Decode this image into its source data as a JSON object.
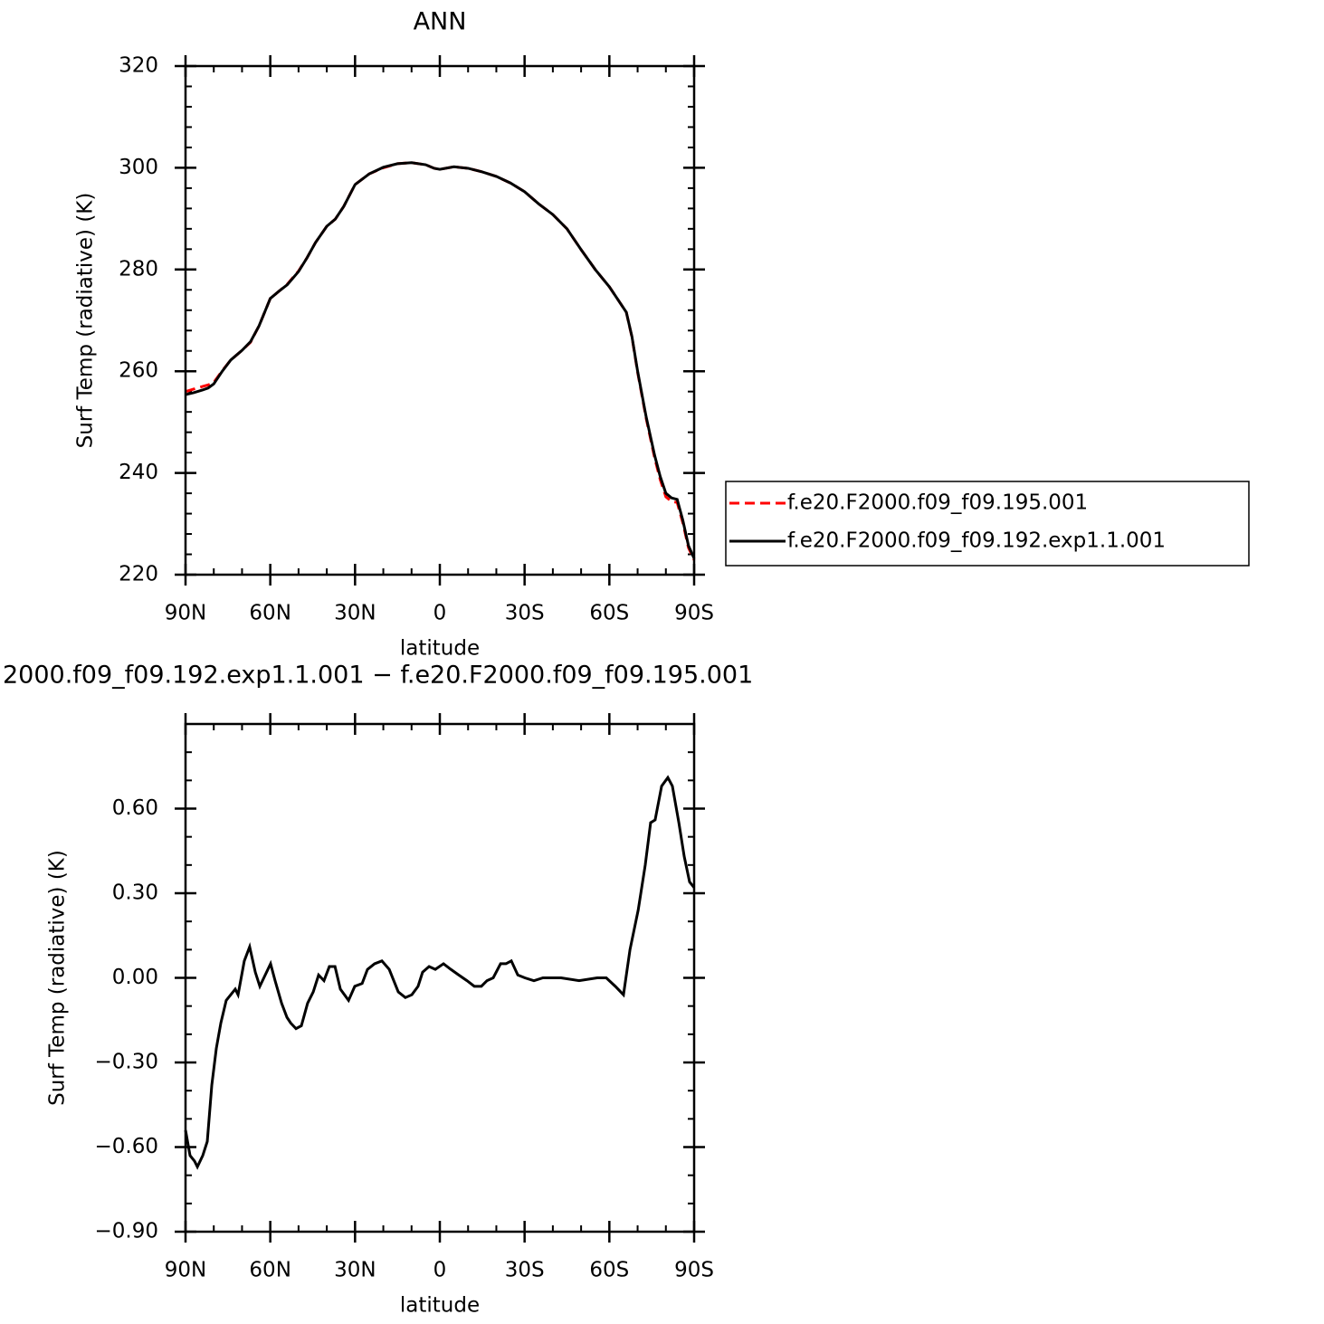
{
  "chart_data": [
    {
      "type": "line",
      "title": "ANN",
      "xlabel": "latitude",
      "ylabel": "Surf Temp (radiative) (K)",
      "x": [
        90,
        87,
        84,
        82,
        80,
        77,
        74,
        70,
        67,
        64,
        60,
        57,
        54,
        50,
        47,
        44,
        40,
        37,
        34,
        30,
        25,
        20,
        15,
        10,
        5,
        2,
        0,
        -5,
        -10,
        -15,
        -20,
        -25,
        -30,
        -35,
        -40,
        -45,
        -50,
        -55,
        -60,
        -63,
        -66,
        -68,
        -70,
        -73,
        -76,
        -78,
        -80,
        -82,
        -84,
        -86,
        -88,
        -90
      ],
      "series": [
        {
          "name": "f.e20.F2000.f09_f09.195.001",
          "color": "#ff0000",
          "dash": true,
          "values": [
            256.0,
            256.5,
            257.0,
            257.3,
            257.8,
            260.1,
            262.2,
            264.1,
            265.7,
            268.9,
            274.3,
            275.7,
            277.1,
            279.7,
            282.3,
            285.3,
            288.5,
            289.9,
            292.4,
            296.7,
            298.8,
            300.0,
            300.8,
            301.0,
            300.6,
            299.9,
            299.7,
            300.2,
            299.9,
            299.2,
            298.3,
            297.0,
            295.3,
            292.9,
            290.8,
            288.0,
            283.9,
            280.0,
            276.6,
            274.1,
            271.6,
            266.7,
            259.8,
            250.8,
            243.0,
            238.7,
            235.3,
            234.4,
            234.2,
            230.2,
            225.3,
            222.9
          ]
        },
        {
          "name": "f.e20.F2000.f09_f09.192.exp1.1.001",
          "color": "#000000",
          "dash": false,
          "values": [
            255.4,
            255.8,
            256.3,
            256.7,
            257.5,
            260.0,
            262.2,
            264.1,
            265.8,
            268.9,
            274.3,
            275.7,
            277.0,
            279.6,
            282.3,
            285.3,
            288.5,
            289.9,
            292.4,
            296.7,
            298.8,
            300.1,
            300.8,
            301.0,
            300.6,
            299.9,
            299.7,
            300.2,
            299.9,
            299.2,
            298.3,
            297.0,
            295.3,
            292.9,
            290.8,
            288.0,
            283.9,
            280.0,
            276.6,
            274.1,
            271.6,
            266.8,
            260.0,
            251.1,
            243.5,
            239.3,
            236.0,
            235.1,
            234.8,
            230.7,
            225.7,
            223.2
          ]
        }
      ],
      "xlim": [
        90,
        -90
      ],
      "xticks": [
        {
          "value": 90,
          "label": "90N"
        },
        {
          "value": 60,
          "label": "60N"
        },
        {
          "value": 30,
          "label": "30N"
        },
        0,
        {
          "value": -30,
          "label": "30S"
        },
        {
          "value": -60,
          "label": "60S"
        },
        {
          "value": -90,
          "label": "90S"
        }
      ],
      "ylim": [
        220,
        320
      ],
      "yticks": [
        220,
        240,
        260,
        280,
        300,
        320
      ],
      "xminor": 2,
      "yminor": 4,
      "legend": "right"
    },
    {
      "type": "line",
      "title": "2000.f09_f09.192.exp1.1.001 − f.e20.F2000.f09_f09.195.001",
      "xlabel": "latitude",
      "ylabel": "Surf Temp (radiative) (K)",
      "x": [
        90,
        88.4,
        86.8,
        85.8,
        83.9,
        82.3,
        80.7,
        79.1,
        77.5,
        75.6,
        74,
        72.4,
        71.4,
        69.2,
        67.3,
        65.3,
        63.7,
        61.8,
        59.9,
        58.3,
        56,
        54.1,
        52.8,
        50.9,
        49,
        46.8,
        44.8,
        42.9,
        41,
        39.1,
        37.1,
        35.2,
        32.3,
        30.1,
        27.5,
        25.6,
        23.1,
        20.5,
        17.9,
        14.7,
        12.2,
        9.9,
        7.7,
        6.1,
        3.8,
        1.6,
        -1.3,
        -3.9,
        -6.7,
        -9.6,
        -12.2,
        -14.7,
        -16.7,
        -18.9,
        -21.5,
        -23.4,
        -25.3,
        -27.6,
        -30.1,
        -33.3,
        -36.5,
        -42.9,
        -49.3,
        -55.7,
        -58.9,
        -62.1,
        -65,
        -67.3,
        -70.2,
        -72.7,
        -74.6,
        -76.2,
        -78.5,
        -80.7,
        -82.3,
        -84.6,
        -86.5,
        -88.4,
        -90
      ],
      "series": [
        {
          "color": "#000000",
          "dash": false,
          "values": [
            -0.54,
            -0.63,
            -0.65,
            -0.67,
            -0.63,
            -0.58,
            -0.38,
            -0.25,
            -0.16,
            -0.08,
            -0.06,
            -0.04,
            -0.06,
            0.06,
            0.11,
            0.02,
            -0.03,
            0.01,
            0.05,
            -0.01,
            -0.09,
            -0.14,
            -0.16,
            -0.18,
            -0.17,
            -0.09,
            -0.05,
            0.01,
            -0.01,
            0.04,
            0.04,
            -0.04,
            -0.08,
            -0.03,
            -0.02,
            0.03,
            0.05,
            0.06,
            0.03,
            -0.05,
            -0.07,
            -0.06,
            -0.03,
            0.02,
            0.04,
            0.03,
            0.05,
            0.03,
            0.01,
            -0.01,
            -0.03,
            -0.03,
            -0.01,
            0.0,
            0.05,
            0.05,
            0.06,
            0.01,
            0.0,
            -0.01,
            0.0,
            0.0,
            -0.01,
            0.0,
            0.0,
            -0.03,
            -0.06,
            0.1,
            0.24,
            0.4,
            0.55,
            0.56,
            0.68,
            0.71,
            0.68,
            0.55,
            0.43,
            0.34,
            0.32
          ]
        }
      ],
      "xlim": [
        90,
        -90
      ],
      "xticks": [
        {
          "value": 90,
          "label": "90N"
        },
        {
          "value": 60,
          "label": "60N"
        },
        {
          "value": 30,
          "label": "30N"
        },
        0,
        {
          "value": -30,
          "label": "30S"
        },
        {
          "value": -60,
          "label": "60S"
        },
        {
          "value": -90,
          "label": "90S"
        }
      ],
      "ylim": [
        -0.9,
        0.9
      ],
      "yticks": [
        {
          "value": -0.9,
          "label": "−0.90"
        },
        {
          "value": -0.6,
          "label": "−0.60"
        },
        {
          "value": -0.3,
          "label": "−0.30"
        },
        {
          "value": 0,
          "label": "0.00"
        },
        {
          "value": 0.3,
          "label": "0.30"
        },
        {
          "value": 0.6,
          "label": "0.60"
        }
      ],
      "xminor": 2,
      "yminor": 2
    }
  ]
}
